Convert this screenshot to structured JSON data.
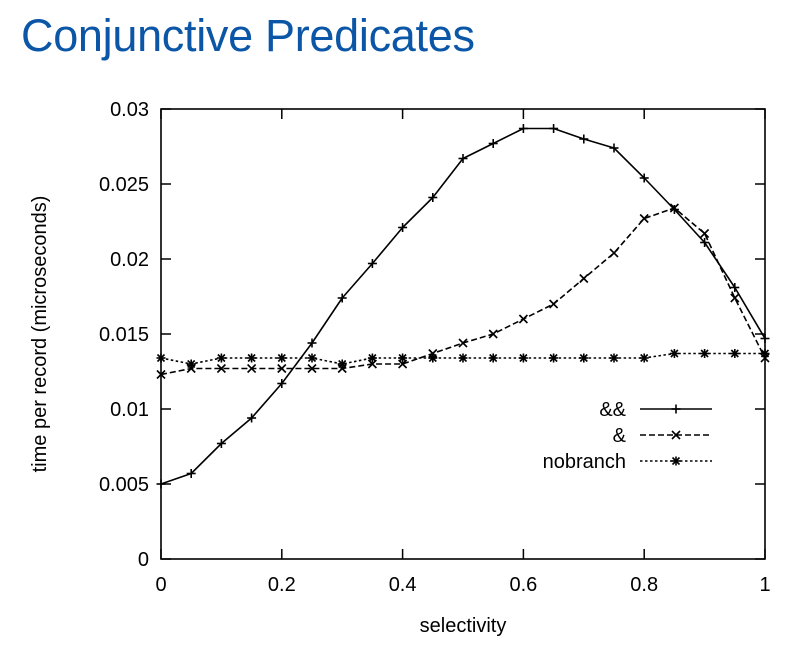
{
  "slide": {
    "title": "Conjunctive Predicates",
    "title_color": "#0b56a6"
  },
  "chart_data": {
    "type": "line",
    "title": "",
    "xlabel": "selectivity",
    "ylabel": "time per record (microseconds)",
    "xlim": [
      0,
      1
    ],
    "ylim": [
      0,
      0.03
    ],
    "xticks": [
      "0",
      "0.2",
      "0.4",
      "0.6",
      "0.8",
      "1"
    ],
    "yticks": [
      "0",
      "0.005",
      "0.01",
      "0.015",
      "0.02",
      "0.025",
      "0.03"
    ],
    "grid": false,
    "legend_position": "right",
    "x": [
      0,
      0.05,
      0.1,
      0.15,
      0.2,
      0.25,
      0.3,
      0.35,
      0.4,
      0.45,
      0.5,
      0.55,
      0.6,
      0.65,
      0.7,
      0.75,
      0.8,
      0.85,
      0.9,
      0.95,
      1
    ],
    "series": [
      {
        "name": "&&",
        "line_style": "solid",
        "marker": "plus",
        "values": [
          0.005,
          0.0057,
          0.0077,
          0.0094,
          0.0117,
          0.0144,
          0.0174,
          0.0197,
          0.0221,
          0.0241,
          0.0267,
          0.0277,
          0.0287,
          0.0287,
          0.028,
          0.0274,
          0.0254,
          0.0233,
          0.0211,
          0.0181,
          0.0147
        ]
      },
      {
        "name": "&",
        "line_style": "dashed",
        "marker": "cross",
        "values": [
          0.0123,
          0.0127,
          0.0127,
          0.0127,
          0.0127,
          0.0127,
          0.0127,
          0.013,
          0.013,
          0.0137,
          0.0144,
          0.015,
          0.016,
          0.017,
          0.0187,
          0.0204,
          0.0227,
          0.0234,
          0.0217,
          0.0174,
          0.0134
        ]
      },
      {
        "name": "nobranch",
        "line_style": "dotted",
        "marker": "star",
        "values": [
          0.0134,
          0.013,
          0.0134,
          0.0134,
          0.0134,
          0.0134,
          0.013,
          0.0134,
          0.0134,
          0.0134,
          0.0134,
          0.0134,
          0.0134,
          0.0134,
          0.0134,
          0.0134,
          0.0134,
          0.0137,
          0.0137,
          0.0137,
          0.0137
        ]
      }
    ]
  }
}
